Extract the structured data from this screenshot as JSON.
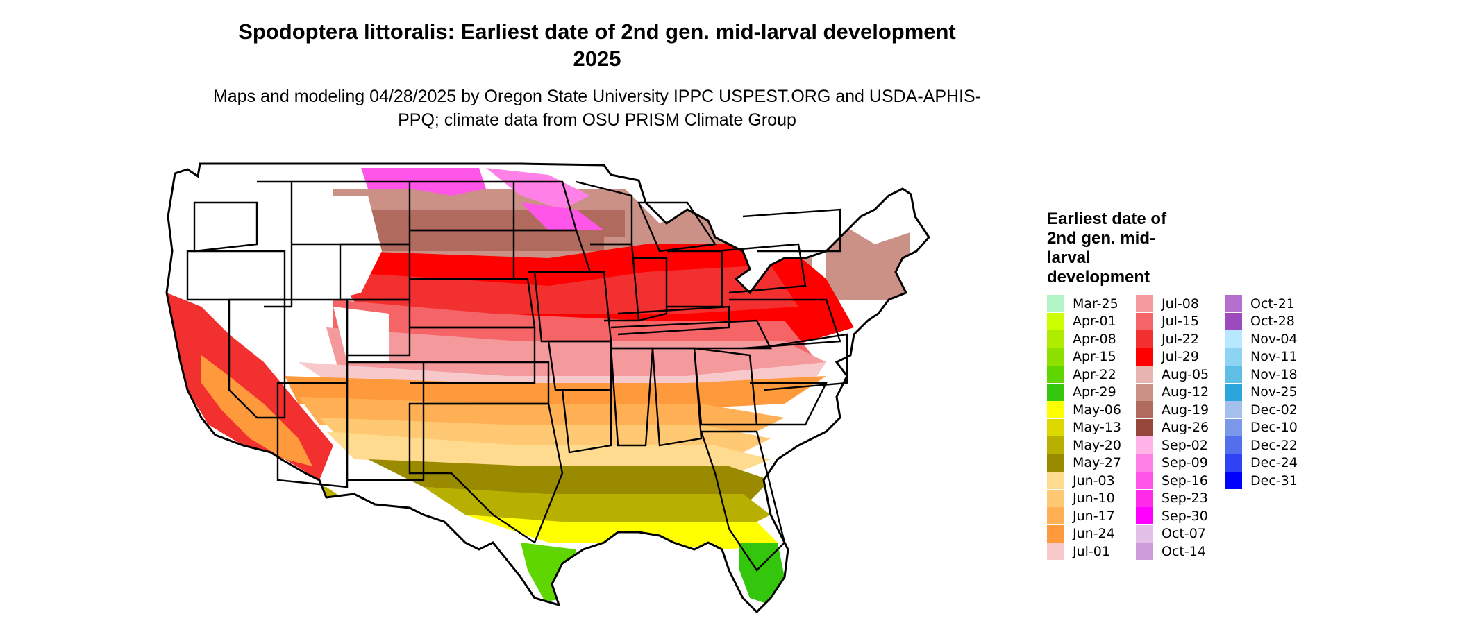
{
  "title": "Spodoptera littoralis: Earliest date of 2nd gen. mid-larval development 2025",
  "subtitle": "Maps and modeling 04/28/2025 by Oregon State University IPPC USPEST.ORG and USDA-APHIS-PPQ; climate data from OSU PRISM Climate Group",
  "legend": {
    "title": "Earliest date of 2nd gen. mid-larval development",
    "columns": [
      [
        {
          "label": "Mar-25",
          "color": "#b3f5c6"
        },
        {
          "label": "Apr-01",
          "color": "#ccff00"
        },
        {
          "label": "Apr-08",
          "color": "#b0ec00"
        },
        {
          "label": "Apr-15",
          "color": "#8ee000"
        },
        {
          "label": "Apr-22",
          "color": "#5fd600"
        },
        {
          "label": "Apr-29",
          "color": "#33c60c"
        },
        {
          "label": "May-06",
          "color": "#ffff00"
        },
        {
          "label": "May-13",
          "color": "#dcd800"
        },
        {
          "label": "May-20",
          "color": "#b8b000"
        },
        {
          "label": "May-27",
          "color": "#9a8a00"
        },
        {
          "label": "Jun-03",
          "color": "#ffdb8f"
        },
        {
          "label": "Jun-10",
          "color": "#ffc872"
        },
        {
          "label": "Jun-17",
          "color": "#ffb054"
        },
        {
          "label": "Jun-24",
          "color": "#ff9a3c"
        },
        {
          "label": "Jul-01",
          "color": "#f7c9cb"
        }
      ],
      [
        {
          "label": "Jul-08",
          "color": "#f4999c"
        },
        {
          "label": "Jul-15",
          "color": "#f56466"
        },
        {
          "label": "Jul-22",
          "color": "#f23030"
        },
        {
          "label": "Jul-29",
          "color": "#ff0000"
        },
        {
          "label": "Aug-05",
          "color": "#e8b4b0"
        },
        {
          "label": "Aug-12",
          "color": "#cc9186"
        },
        {
          "label": "Aug-19",
          "color": "#b06a5e"
        },
        {
          "label": "Aug-26",
          "color": "#96473a"
        },
        {
          "label": "Sep-02",
          "color": "#ffb3e6"
        },
        {
          "label": "Sep-09",
          "color": "#ff80e6"
        },
        {
          "label": "Sep-16",
          "color": "#ff55e8"
        },
        {
          "label": "Sep-23",
          "color": "#ff2be8"
        },
        {
          "label": "Sep-30",
          "color": "#ff00ff"
        },
        {
          "label": "Oct-07",
          "color": "#e3c0e8"
        },
        {
          "label": "Oct-14",
          "color": "#cc9cd8"
        }
      ],
      [
        {
          "label": "Oct-21",
          "color": "#b56fcf"
        },
        {
          "label": "Oct-28",
          "color": "#9d4abf"
        },
        {
          "label": "Nov-04",
          "color": "#b8e8ff"
        },
        {
          "label": "Nov-11",
          "color": "#8cd4f2"
        },
        {
          "label": "Nov-18",
          "color": "#5ebee6"
        },
        {
          "label": "Nov-25",
          "color": "#2aa6dc"
        },
        {
          "label": "Dec-02",
          "color": "#a6c0ee"
        },
        {
          "label": "Dec-10",
          "color": "#7c98ea"
        },
        {
          "label": "Dec-22",
          "color": "#5270ec"
        },
        {
          "label": "Dec-24",
          "color": "#2e44f4"
        },
        {
          "label": "Dec-31",
          "color": "#0000ff"
        }
      ]
    ]
  }
}
